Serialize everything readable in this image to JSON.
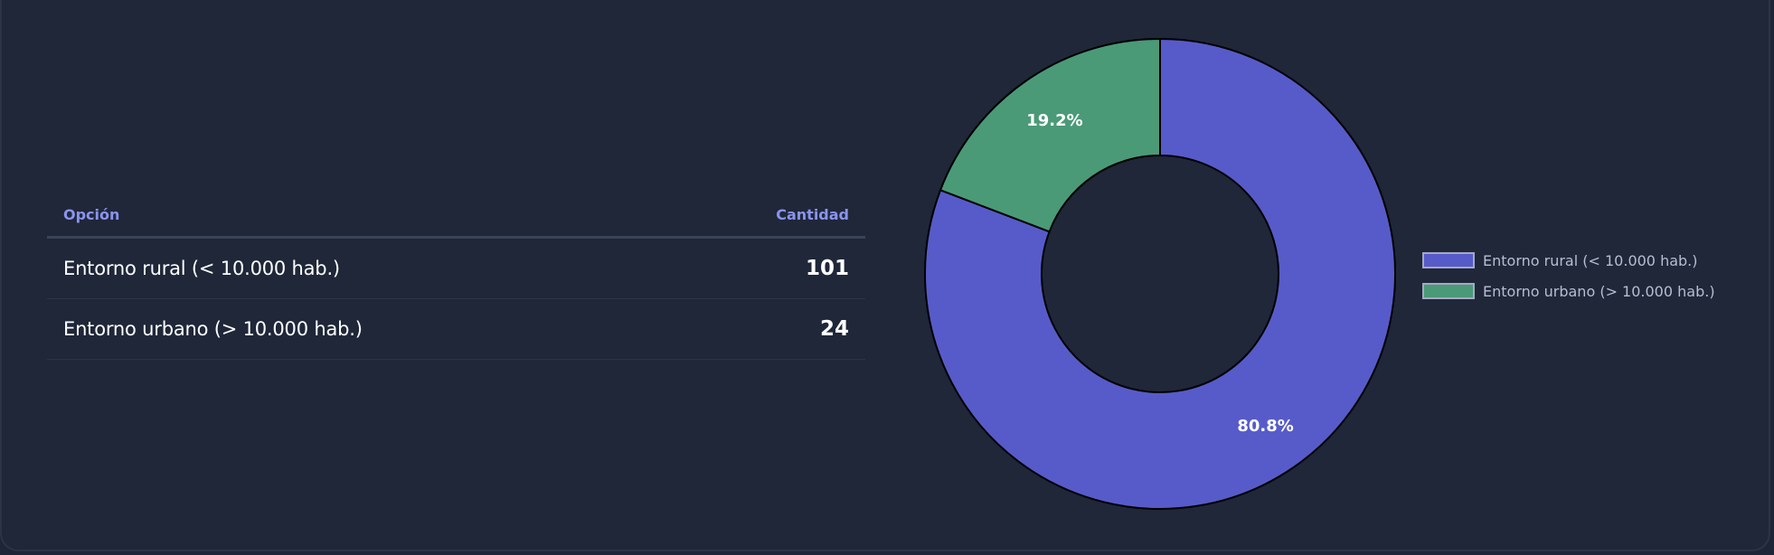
{
  "table": {
    "header_option": "Opción",
    "header_count": "Cantidad",
    "rows": [
      {
        "label": "Entorno rural (< 10.000 hab.)",
        "count": "101"
      },
      {
        "label": "Entorno urbano (> 10.000 hab.)",
        "count": "24"
      }
    ]
  },
  "chart_data": {
    "type": "pie",
    "donut": true,
    "categories": [
      "Entorno rural (< 10.000 hab.)",
      "Entorno urbano (> 10.000 hab.)"
    ],
    "values": [
      101,
      24
    ],
    "percent_labels": [
      "80.8%",
      "19.2%"
    ],
    "colors": [
      "#575bc9",
      "#4a9a77"
    ],
    "legend_position": "right"
  }
}
